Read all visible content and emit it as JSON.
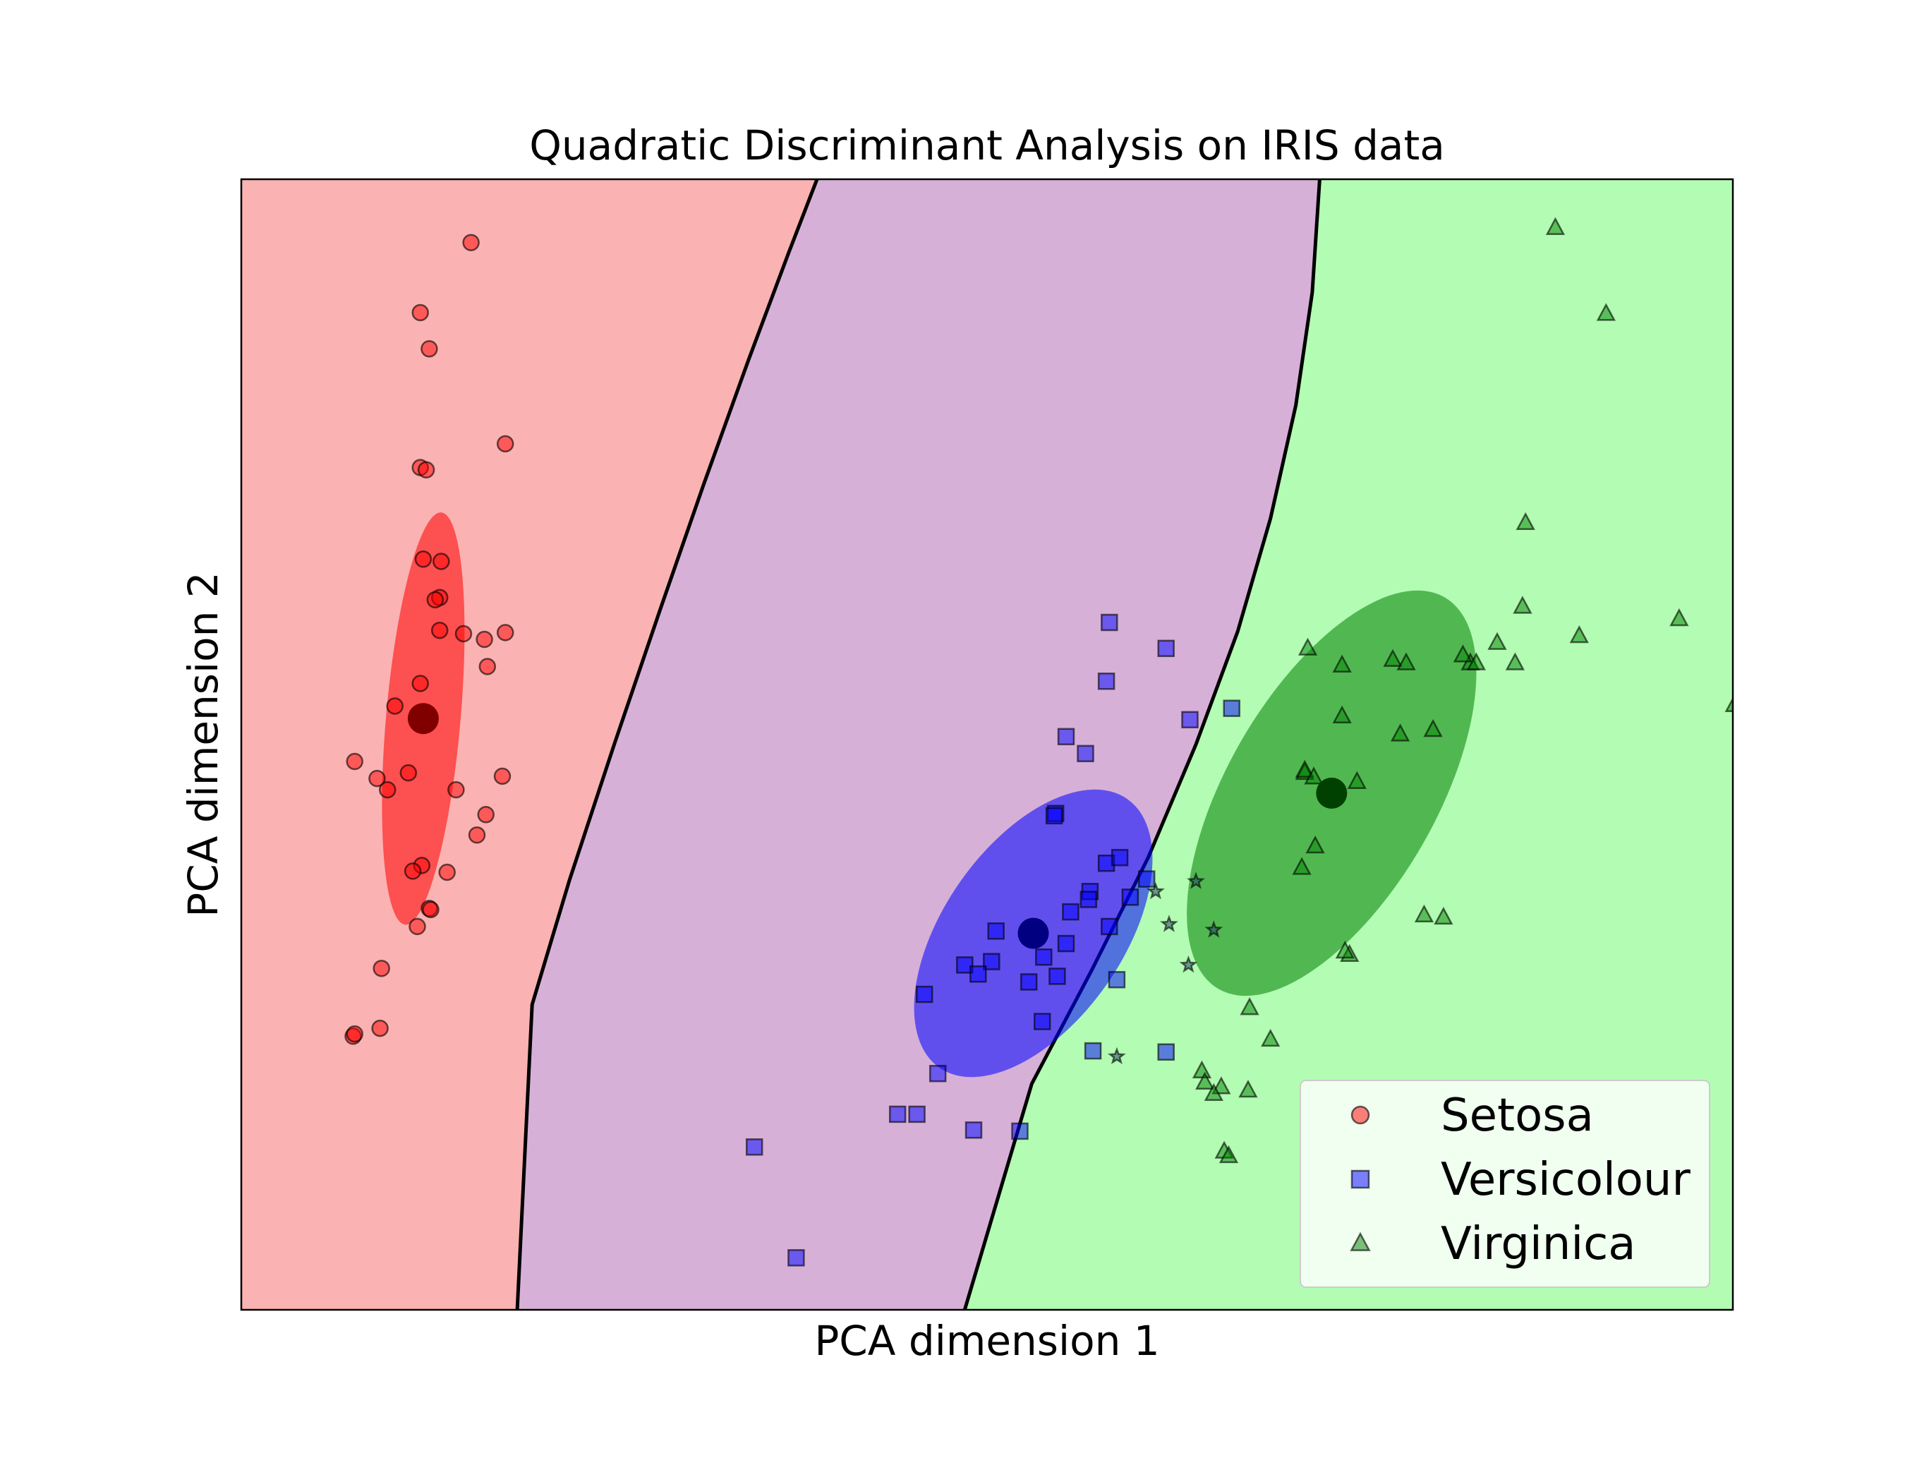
{
  "chart_data": {
    "type": "scatter",
    "title": "Quadratic Discriminant Analysis on IRIS data",
    "xlabel": "PCA dimension 1",
    "ylabel": "PCA dimension 2",
    "xlim": [
      0,
      1000
    ],
    "ylim": [
      0,
      1000
    ],
    "ticks": "none",
    "grid": false,
    "legend_position": "lower-right",
    "regions": [
      {
        "class": "Setosa",
        "color": "#fbb2b2"
      },
      {
        "class": "Versicolour",
        "color": "#d7b0d8"
      },
      {
        "class": "Virginica",
        "color": "#b3fcb3"
      }
    ],
    "boundaries": [
      {
        "name": "setosa-versicolour",
        "points": [
          [
            386,
            1000
          ],
          [
            367,
            935
          ],
          [
            340,
            840
          ],
          [
            310,
            730
          ],
          [
            281,
            620
          ],
          [
            250,
            500
          ],
          [
            220,
            380
          ],
          [
            195,
            270
          ],
          [
            185,
            0
          ]
        ]
      },
      {
        "name": "versicolour-virginica",
        "points": [
          [
            723,
            1000
          ],
          [
            718,
            900
          ],
          [
            707,
            800
          ],
          [
            690,
            700
          ],
          [
            668,
            600
          ],
          [
            640,
            500
          ],
          [
            608,
            400
          ],
          [
            570,
            300
          ],
          [
            530,
            200
          ],
          [
            485,
            0
          ]
        ]
      }
    ],
    "series": [
      {
        "name": "Setosa",
        "marker": "circle",
        "color": "#ff0000",
        "x": [
          154,
          120,
          126,
          177,
          120,
          124,
          122,
          134,
          133,
          130,
          133,
          149,
          163,
          177,
          165,
          120,
          103,
          122,
          76,
          91,
          112,
          144,
          175,
          164,
          121,
          98,
          158,
          138,
          115,
          126,
          118,
          127,
          75,
          94,
          76,
          93
        ],
        "y": [
          944,
          882,
          850,
          766,
          745,
          743,
          664,
          662,
          630,
          628,
          601,
          598,
          593,
          599,
          569,
          554,
          534,
          522,
          485,
          470,
          475,
          460,
          472,
          438,
          393,
          460,
          420,
          387,
          388,
          355,
          339,
          354,
          242,
          302,
          244,
          249
        ]
      },
      {
        "name": "Versicolour",
        "marker": "square",
        "color": "#0000ff",
        "x": [
          582,
          620,
          580,
          636,
          664,
          566,
          553,
          546,
          545,
          596,
          580,
          569,
          568,
          556,
          607,
          589,
          582,
          553,
          528,
          503,
          458,
          506,
          538,
          485,
          494,
          547,
          587,
          537,
          620,
          571,
          467,
          440,
          453,
          522,
          491,
          344,
          372
        ],
        "y": [
          608,
          585,
          556,
          522,
          532,
          492,
          507,
          439,
          437,
          365,
          395,
          370,
          363,
          352,
          381,
          400,
          339,
          324,
          290,
          308,
          279,
          335,
          312,
          305,
          297,
          295,
          292,
          255,
          228,
          229,
          209,
          173,
          173,
          158,
          159,
          144,
          46
        ]
      },
      {
        "name": "Virginica",
        "marker": "triangle",
        "color": "#008000",
        "x": [
          881,
          915,
          861,
          897,
          964,
          1001,
          715,
          738,
          772,
          738,
          799,
          777,
          824,
          781,
          819,
          828,
          842,
          859,
          854,
          748,
          713,
          713,
          719,
          793,
          806,
          711,
          720,
          743,
          740,
          690,
          676,
          644,
          646,
          657,
          675,
          659,
          662,
          652
        ],
        "y": [
          957,
          881,
          696,
          596,
          611,
          535,
          585,
          570,
          575,
          525,
          513,
          509,
          572,
          572,
          579,
          572,
          590,
          622,
          572,
          467,
          475,
          477,
          471,
          349,
          347,
          391,
          410,
          314,
          317,
          239,
          267,
          211,
          201,
          197,
          194,
          140,
          136,
          191
        ]
      }
    ],
    "misclassified": {
      "marker": "star",
      "color": "#1a3a5c",
      "x": [
        652,
        613,
        635,
        622,
        640,
        587
      ],
      "y": [
        336,
        370,
        305,
        341,
        379,
        224
      ]
    },
    "class_means": [
      {
        "class": "Setosa",
        "x": 122,
        "y": 523,
        "color": "#800000"
      },
      {
        "class": "Versicolour",
        "x": 531,
        "y": 333,
        "color": "#000080"
      },
      {
        "class": "Virginica",
        "x": 731,
        "y": 457,
        "color": "#004000"
      }
    ],
    "covariance_ellipses": [
      {
        "class": "Setosa",
        "center": [
          122,
          523
        ],
        "semi_axes": [
          25,
          183
        ],
        "angle_deg": 5,
        "color": "#ff0000"
      },
      {
        "class": "Versicolour",
        "center": [
          531,
          333
        ],
        "semi_axes": [
          60,
          145
        ],
        "angle_deg": 35,
        "color": "#0000ff"
      },
      {
        "class": "Virginica",
        "center": [
          731,
          457
        ],
        "semi_axes": [
          70,
          200
        ],
        "angle_deg": 30,
        "color": "#008000"
      }
    ]
  }
}
